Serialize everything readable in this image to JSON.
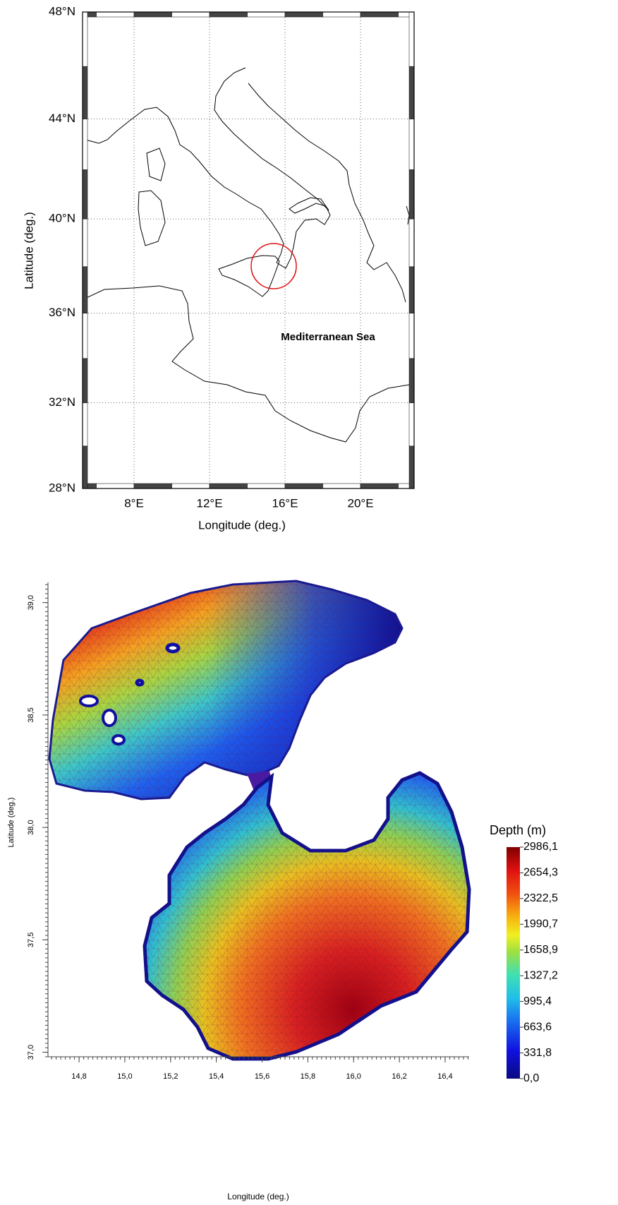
{
  "top_map": {
    "projection": "mercator",
    "xlim": [
      5.27,
      22.84
    ],
    "ylim": [
      28,
      48
    ],
    "xticks": [
      {
        "value": 8,
        "label": "8°E"
      },
      {
        "value": 12,
        "label": "12°E"
      },
      {
        "value": 16,
        "label": "16°E"
      },
      {
        "value": 20,
        "label": "20°E"
      }
    ],
    "yticks": [
      {
        "value": 28,
        "label": "28°N"
      },
      {
        "value": 32,
        "label": "32°N"
      },
      {
        "value": 36,
        "label": "36°N"
      },
      {
        "value": 40,
        "label": "40°N"
      },
      {
        "value": 44,
        "label": "44°N"
      },
      {
        "value": 48,
        "label": "48°N"
      }
    ],
    "xlabel": "Longitude (deg.)",
    "ylabel": "Latitude (deg.)",
    "annotation": "Mediterranean Sea",
    "grid": true
  },
  "bathymetry": {
    "xlim": [
      14.664,
      16.505
    ],
    "ylim": [
      36.98,
      39.09
    ],
    "xticks": [
      {
        "value": 14.8,
        "label": "14,8"
      },
      {
        "value": 15.0,
        "label": "15,0"
      },
      {
        "value": 15.2,
        "label": "15,2"
      },
      {
        "value": 15.4,
        "label": "15,4"
      },
      {
        "value": 15.6,
        "label": "15,6"
      },
      {
        "value": 15.8,
        "label": "15,8"
      },
      {
        "value": 16.0,
        "label": "16,0"
      },
      {
        "value": 16.2,
        "label": "16,2"
      },
      {
        "value": 16.4,
        "label": "16,4"
      }
    ],
    "yticks": [
      {
        "value": 37.0,
        "label": "37,0"
      },
      {
        "value": 37.5,
        "label": "37,5"
      },
      {
        "value": 38.0,
        "label": "38,0"
      },
      {
        "value": 38.5,
        "label": "38,5"
      },
      {
        "value": 39.0,
        "label": "39,0"
      }
    ],
    "xlabel": "Longitude (deg.)",
    "ylabel": "Latitude (deg.)",
    "colorbar": {
      "title": "Depth (m)",
      "clim": [
        0,
        2986.1
      ],
      "ticks": [
        {
          "value": 0,
          "label": "0,0"
        },
        {
          "value": 331.8,
          "label": "331,8"
        },
        {
          "value": 663.6,
          "label": "663,6"
        },
        {
          "value": 995.4,
          "label": "995,4"
        },
        {
          "value": 1327.2,
          "label": "1327,2"
        },
        {
          "value": 1658.9,
          "label": "1658,9"
        },
        {
          "value": 1990.7,
          "label": "1990,7"
        },
        {
          "value": 2322.5,
          "label": "2322,5"
        },
        {
          "value": 2654.3,
          "label": "2654,3"
        },
        {
          "value": 2986.1,
          "label": "2986,1"
        }
      ]
    }
  }
}
